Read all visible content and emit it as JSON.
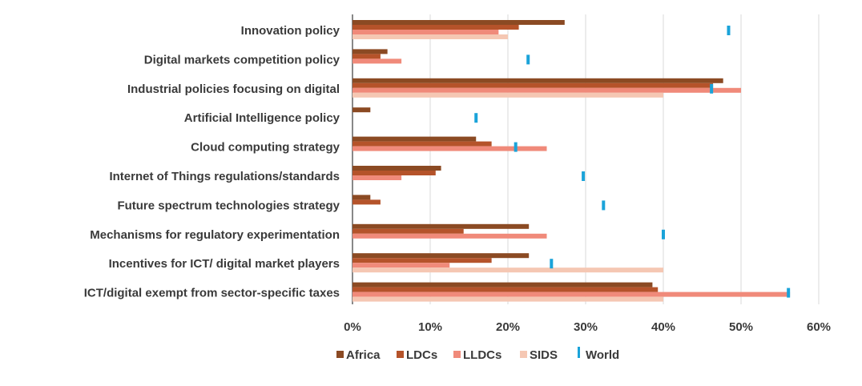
{
  "chart_data": {
    "type": "bar",
    "orientation": "horizontal",
    "categories": [
      "Innovation policy",
      "Digital markets competition policy",
      "Industrial policies focusing on digital",
      "Artificial Intelligence policy",
      "Cloud computing strategy",
      "Internet of Things regulations/standards",
      "Future spectrum technologies strategy",
      "Mechanisms for regulatory experimentation",
      "Incentives for ICT/ digital market players",
      "ICT/digital exempt from sector-specific taxes"
    ],
    "series": [
      {
        "name": "Africa",
        "color": "#8b4a23",
        "values": [
          27.3,
          4.5,
          47.7,
          2.3,
          15.9,
          11.4,
          2.3,
          22.7,
          22.7,
          38.6
        ]
      },
      {
        "name": "LDCs",
        "color": "#b5532a",
        "values": [
          21.4,
          3.6,
          46.4,
          0,
          17.9,
          10.7,
          3.6,
          14.3,
          17.9,
          39.3
        ]
      },
      {
        "name": "LLDCs",
        "color": "#f08a7a",
        "values": [
          18.8,
          6.3,
          50.0,
          0,
          25.0,
          6.3,
          0,
          25.0,
          12.5,
          56.3
        ]
      },
      {
        "name": "SIDS",
        "color": "#f5c7b3",
        "values": [
          20.0,
          0,
          40.0,
          0,
          0,
          0,
          0,
          0,
          40.0,
          40.0
        ]
      }
    ],
    "world": {
      "name": "World",
      "color": "#1aa3d9",
      "values": [
        48.4,
        22.6,
        46.2,
        15.9,
        21.0,
        29.7,
        32.3,
        40.0,
        25.6,
        56.1
      ]
    },
    "x_ticks": [
      "0%",
      "10%",
      "20%",
      "30%",
      "40%",
      "50%",
      "60%"
    ],
    "xlim": [
      0,
      60
    ],
    "grid": true,
    "legend_position": "bottom"
  }
}
